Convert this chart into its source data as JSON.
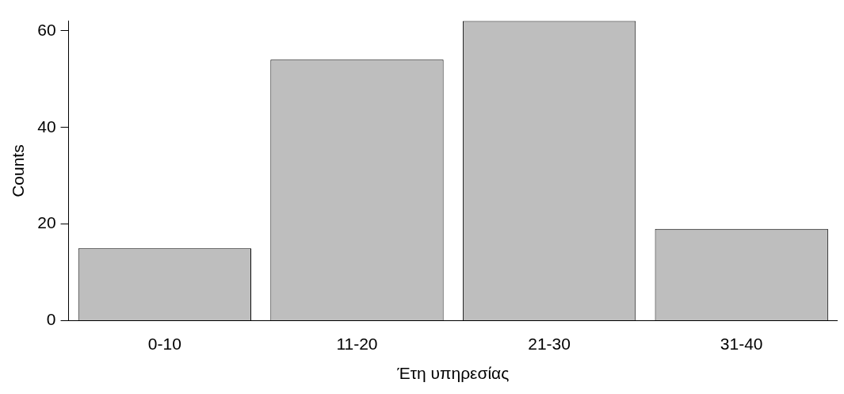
{
  "chart_data": {
    "type": "bar",
    "xlabel": "Έτη υπηρεσίας",
    "ylabel": "Counts",
    "categories": [
      "0-10",
      "11-20",
      "21-30",
      "31-40"
    ],
    "values": [
      15,
      54,
      62,
      19
    ],
    "color": "#bebebe",
    "ylim": [
      0,
      62
    ],
    "yticks": [
      0,
      20,
      40,
      60
    ],
    "grid": false
  }
}
